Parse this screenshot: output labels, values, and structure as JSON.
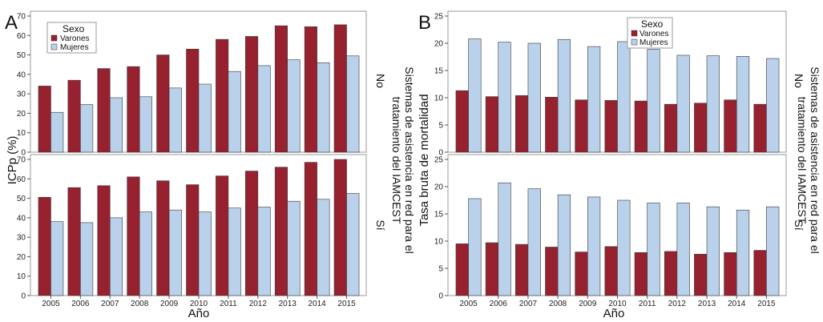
{
  "colors": {
    "varones": "#97212f",
    "mujeres": "#b9d1ea",
    "frame": "#9a9a9a"
  },
  "shared": {
    "years": [
      "2005",
      "2006",
      "2007",
      "2008",
      "2009",
      "2010",
      "2011",
      "2012",
      "2013",
      "2014",
      "2015"
    ],
    "xlabel": "Año",
    "legend_title": "Sexo",
    "legend_items": [
      "Varones",
      "Mujeres"
    ],
    "facet_title": "Sistemas de asistencia en red para el tratamiento del IAMCEST",
    "facet_title_line1": "Sistemas de asistencia en red para el",
    "facet_title_line2": "tratamiento del IAMCEST",
    "facet_no": "No",
    "facet_si": "Sí"
  },
  "panel_a": {
    "letter": "A",
    "ylabel": "ICPp (%)",
    "yticks": [
      0,
      10,
      20,
      30,
      40,
      50,
      60,
      70
    ],
    "ylim": [
      0,
      70
    ]
  },
  "panel_b": {
    "letter": "B",
    "ylabel": "Tasa bruta de mortalidad",
    "yticks": [
      0,
      5,
      10,
      15,
      20,
      25
    ],
    "ylim": [
      0,
      25
    ]
  },
  "chart_data": [
    {
      "panel": "A",
      "facet": "No",
      "type": "bar",
      "ylabel": "ICPp (%)",
      "xlabel": "Año",
      "ylim": [
        0,
        70
      ],
      "categories": [
        "2005",
        "2006",
        "2007",
        "2008",
        "2009",
        "2010",
        "2011",
        "2012",
        "2013",
        "2014",
        "2015"
      ],
      "series": [
        {
          "name": "Varones",
          "values": [
            34,
            37,
            43,
            44,
            50,
            53,
            58,
            59.5,
            65,
            64.5,
            65.5
          ]
        },
        {
          "name": "Mujeres",
          "values": [
            20.5,
            24.5,
            28,
            28.5,
            33,
            35,
            41.5,
            44.5,
            47.5,
            46,
            49.5
          ]
        }
      ]
    },
    {
      "panel": "A",
      "facet": "Sí",
      "type": "bar",
      "ylabel": "ICPp (%)",
      "xlabel": "Año",
      "ylim": [
        0,
        70
      ],
      "categories": [
        "2005",
        "2006",
        "2007",
        "2008",
        "2009",
        "2010",
        "2011",
        "2012",
        "2013",
        "2014",
        "2015"
      ],
      "series": [
        {
          "name": "Varones",
          "values": [
            50.5,
            55.5,
            56.5,
            61,
            59,
            57,
            61.5,
            64,
            66,
            68.5,
            70
          ]
        },
        {
          "name": "Mujeres",
          "values": [
            38,
            37.5,
            40,
            43,
            44,
            43,
            45,
            45.5,
            48.5,
            49.5,
            52.5
          ]
        }
      ]
    },
    {
      "panel": "B",
      "facet": "No",
      "type": "bar",
      "ylabel": "Tasa bruta de mortalidad",
      "xlabel": "Año",
      "ylim": [
        0,
        25
      ],
      "categories": [
        "2005",
        "2006",
        "2007",
        "2008",
        "2009",
        "2010",
        "2011",
        "2012",
        "2013",
        "2014",
        "2015"
      ],
      "series": [
        {
          "name": "Varones",
          "values": [
            11.3,
            10.2,
            10.4,
            10.1,
            9.6,
            9.5,
            9.4,
            8.8,
            9.0,
            9.6,
            8.8
          ]
        },
        {
          "name": "Mujeres",
          "values": [
            20.8,
            20.2,
            20.0,
            20.7,
            19.4,
            20.3,
            18.9,
            17.8,
            17.7,
            17.6,
            17.2
          ]
        }
      ]
    },
    {
      "panel": "B",
      "facet": "Sí",
      "type": "bar",
      "ylabel": "Tasa bruta de mortalidad",
      "xlabel": "Año",
      "ylim": [
        0,
        25
      ],
      "categories": [
        "2005",
        "2006",
        "2007",
        "2008",
        "2009",
        "2010",
        "2011",
        "2012",
        "2013",
        "2014",
        "2015"
      ],
      "series": [
        {
          "name": "Varones",
          "values": [
            9.5,
            9.7,
            9.4,
            8.9,
            8.0,
            9.0,
            7.9,
            8.1,
            7.6,
            7.9,
            8.3
          ]
        },
        {
          "name": "Mujeres",
          "values": [
            17.8,
            20.7,
            19.6,
            18.5,
            18.1,
            17.5,
            17.0,
            17.0,
            16.3,
            15.7,
            16.3
          ]
        }
      ]
    }
  ]
}
